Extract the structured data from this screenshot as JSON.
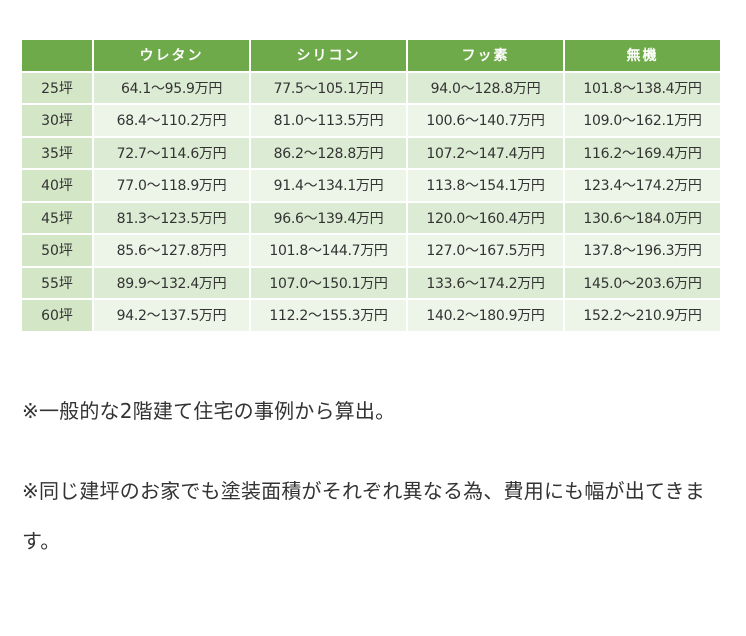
{
  "table": {
    "header": [
      "",
      "ウレタン",
      "シリコン",
      "フッ素",
      "無機"
    ],
    "rows": [
      {
        "size": "25坪",
        "cells": [
          "64.1〜95.9万円",
          "77.5〜105.1万円",
          "94.0〜128.8万円",
          "101.8〜138.4万円"
        ]
      },
      {
        "size": "30坪",
        "cells": [
          "68.4〜110.2万円",
          "81.0〜113.5万円",
          "100.6〜140.7万円",
          "109.0〜162.1万円"
        ]
      },
      {
        "size": "35坪",
        "cells": [
          "72.7〜114.6万円",
          "86.2〜128.8万円",
          "107.2〜147.4万円",
          "116.2〜169.4万円"
        ]
      },
      {
        "size": "40坪",
        "cells": [
          "77.0〜118.9万円",
          "91.4〜134.1万円",
          "113.8〜154.1万円",
          "123.4〜174.2万円"
        ]
      },
      {
        "size": "45坪",
        "cells": [
          "81.3〜123.5万円",
          "96.6〜139.4万円",
          "120.0〜160.4万円",
          "130.6〜184.0万円"
        ]
      },
      {
        "size": "50坪",
        "cells": [
          "85.6〜127.8万円",
          "101.8〜144.7万円",
          "127.0〜167.5万円",
          "137.8〜196.3万円"
        ]
      },
      {
        "size": "55坪",
        "cells": [
          "89.9〜132.4万円",
          "107.0〜150.1万円",
          "133.6〜174.2万円",
          "145.0〜203.6万円"
        ]
      },
      {
        "size": "60坪",
        "cells": [
          "94.2〜137.5万円",
          "112.2〜155.3万円",
          "140.2〜180.9万円",
          "152.2〜210.9万円"
        ]
      }
    ]
  },
  "notes": [
    "※一般的な2階建て住宅の事例から算出。",
    "※同じ建坪のお家でも塗装面積がそれぞれ異なる為、費用にも幅が出てきます。"
  ],
  "colors": {
    "header_bg": "#6faa4a",
    "row_odd_bg": "#dcebd3",
    "row_even_bg": "#edf4e8",
    "row_label_bg": "#d3e6c6"
  }
}
